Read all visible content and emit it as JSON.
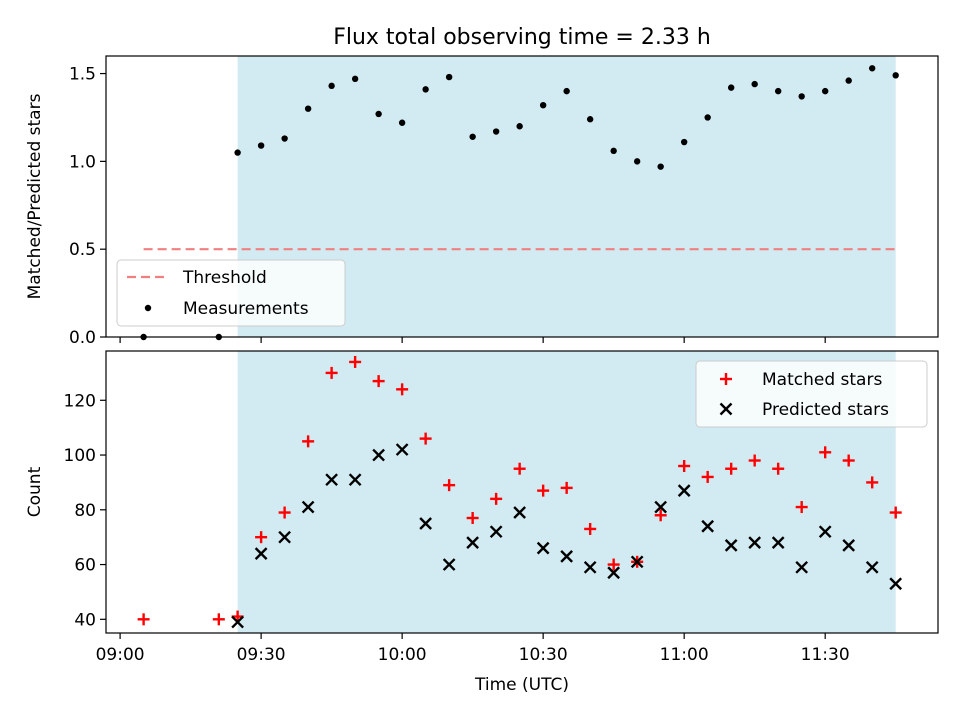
{
  "figure": {
    "title": "Flux total observing time = 2.33 h",
    "xlabel": "Time (UTC)"
  },
  "chart_data": [
    {
      "type": "scatter",
      "title": "Flux total observing time = 2.33 h",
      "ylabel": "Matched/Predicted stars",
      "xlim": [
        "08:57",
        "11:54"
      ],
      "ylim": [
        0,
        1.6
      ],
      "yticks": [
        0.0,
        0.5,
        1.0,
        1.5
      ],
      "yticklabels": [
        "0.0",
        "0.5",
        "1.0",
        "1.5"
      ],
      "xticks": [
        "09:00",
        "09:30",
        "10:00",
        "10:30",
        "11:00",
        "11:30"
      ],
      "shaded_region": {
        "x": [
          "09:25",
          "11:45"
        ],
        "color": "#add8e6"
      },
      "threshold": {
        "name": "Threshold",
        "y": 0.5,
        "x": [
          "09:05",
          "11:45"
        ],
        "color": "#f08080"
      },
      "legend": {
        "position": "lower-left"
      },
      "series": [
        {
          "name": "Measurements",
          "color": "#000000",
          "marker": "dot",
          "x": [
            "09:05",
            "09:21",
            "09:25",
            "09:30",
            "09:35",
            "09:40",
            "09:45",
            "09:50",
            "09:55",
            "10:00",
            "10:05",
            "10:10",
            "10:15",
            "10:20",
            "10:25",
            "10:30",
            "10:35",
            "10:40",
            "10:45",
            "10:50",
            "10:55",
            "11:00",
            "11:05",
            "11:10",
            "11:15",
            "11:20",
            "11:25",
            "11:30",
            "11:35",
            "11:40",
            "11:45"
          ],
          "values": [
            0,
            0,
            1.05,
            1.09,
            1.13,
            1.3,
            1.43,
            1.47,
            1.27,
            1.22,
            1.41,
            1.48,
            1.14,
            1.17,
            1.2,
            1.32,
            1.4,
            1.24,
            1.06,
            1.0,
            0.97,
            1.11,
            1.25,
            1.42,
            1.44,
            1.4,
            1.37,
            1.4,
            1.46,
            1.53,
            1.49
          ]
        }
      ]
    },
    {
      "type": "scatter",
      "ylabel": "Count",
      "xlabel": "Time (UTC)",
      "xlim": [
        "08:57",
        "11:54"
      ],
      "ylim": [
        35,
        138
      ],
      "yticks": [
        40,
        60,
        80,
        100,
        120
      ],
      "xticks": [
        "09:00",
        "09:30",
        "10:00",
        "10:30",
        "11:00",
        "11:30"
      ],
      "xticklabels": [
        "09:00",
        "09:30",
        "10:00",
        "10:30",
        "11:00",
        "11:30"
      ],
      "shaded_region": {
        "x": [
          "09:25",
          "11:45"
        ],
        "color": "#add8e6"
      },
      "legend": {
        "position": "upper-right"
      },
      "series": [
        {
          "name": "Matched stars",
          "color": "#ff0000",
          "marker": "plus",
          "x": [
            "09:05",
            "09:21",
            "09:25",
            "09:30",
            "09:35",
            "09:40",
            "09:45",
            "09:50",
            "09:55",
            "10:00",
            "10:05",
            "10:10",
            "10:15",
            "10:20",
            "10:25",
            "10:30",
            "10:35",
            "10:40",
            "10:45",
            "10:50",
            "10:55",
            "11:00",
            "11:05",
            "11:10",
            "11:15",
            "11:20",
            "11:25",
            "11:30",
            "11:35",
            "11:40",
            "11:45"
          ],
          "values": [
            40,
            40,
            41,
            70,
            79,
            105,
            130,
            134,
            127,
            124,
            106,
            89,
            77,
            84,
            95,
            87,
            88,
            73,
            60,
            61,
            78,
            96,
            92,
            95,
            98,
            95,
            81,
            101,
            98,
            90,
            79
          ]
        },
        {
          "name": "Predicted stars",
          "color": "#000000",
          "marker": "x",
          "x": [
            "09:25",
            "09:30",
            "09:35",
            "09:40",
            "09:45",
            "09:50",
            "09:55",
            "10:00",
            "10:05",
            "10:10",
            "10:15",
            "10:20",
            "10:25",
            "10:30",
            "10:35",
            "10:40",
            "10:45",
            "10:50",
            "10:55",
            "11:00",
            "11:05",
            "11:10",
            "11:15",
            "11:20",
            "11:25",
            "11:30",
            "11:35",
            "11:40",
            "11:45"
          ],
          "values": [
            39,
            64,
            70,
            81,
            91,
            91,
            100,
            102,
            75,
            60,
            68,
            72,
            79,
            66,
            63,
            59,
            57,
            61,
            81,
            87,
            74,
            67,
            68,
            68,
            59,
            72,
            67,
            59,
            53
          ]
        }
      ]
    }
  ]
}
